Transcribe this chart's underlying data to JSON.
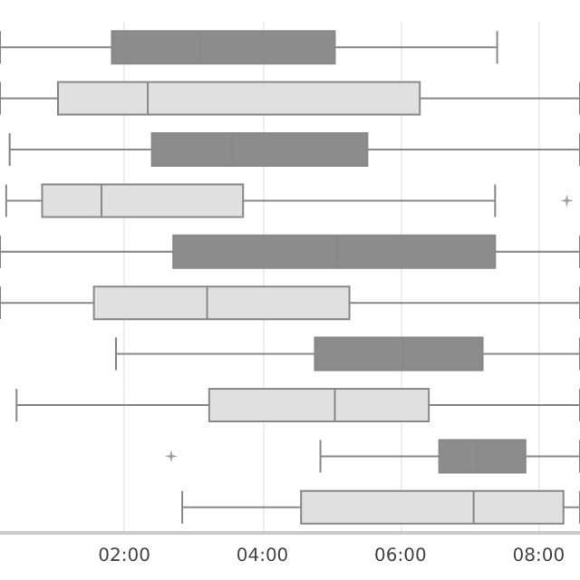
{
  "chart_data": {
    "type": "box",
    "orientation": "horizontal",
    "categories": [
      null,
      null,
      null,
      null,
      null,
      null,
      null,
      null,
      null,
      null
    ],
    "boxes": [
      {
        "low": 0.2,
        "q1": 1.82,
        "median": 3.1,
        "q3": 5.05,
        "high": 7.4
      },
      {
        "low": 0.2,
        "q1": 1.04,
        "median": 2.34,
        "q3": 6.28,
        "high": 8.6
      },
      {
        "low": 0.34,
        "q1": 2.4,
        "median": 3.57,
        "q3": 5.52,
        "high": 8.6
      },
      {
        "low": 0.29,
        "q1": 0.81,
        "median": 1.67,
        "q3": 3.72,
        "high": 7.37,
        "outliers": [
          8.41
        ]
      },
      {
        "low": 0.2,
        "q1": 2.71,
        "median": 5.08,
        "q3": 7.37,
        "high": 8.6
      },
      {
        "low": 0.2,
        "q1": 1.56,
        "median": 3.2,
        "q3": 5.26,
        "high": 8.6
      },
      {
        "low": 1.88,
        "q1": 4.76,
        "median": 6.04,
        "q3": 7.19,
        "high": 8.6
      },
      {
        "low": 0.44,
        "q1": 3.23,
        "median": 5.05,
        "q3": 6.41,
        "high": 8.6
      },
      {
        "low": 4.84,
        "q1": 6.56,
        "median": 7.11,
        "q3": 7.81,
        "high": 8.6,
        "outliers": [
          2.68
        ]
      },
      {
        "low": 2.84,
        "q1": 4.56,
        "median": 7.06,
        "q3": 8.36,
        "high": 8.6
      }
    ],
    "colors": [
      "#8c8c8c",
      "#e0e0e0",
      "#8c8c8c",
      "#e0e0e0",
      "#8c8c8c",
      "#e0e0e0",
      "#8c8c8c",
      "#e0e0e0",
      "#8c8c8c",
      "#e0e0e0"
    ],
    "xlim": [
      0.2,
      8.6
    ],
    "xticks": [
      {
        "value": 2,
        "label": "02:00"
      },
      {
        "value": 4,
        "label": "04:00"
      },
      {
        "value": 6,
        "label": "06:00"
      },
      {
        "value": 8,
        "label": "08:00"
      }
    ],
    "grid": "x",
    "tick_labels": "x",
    "marker": "star"
  }
}
